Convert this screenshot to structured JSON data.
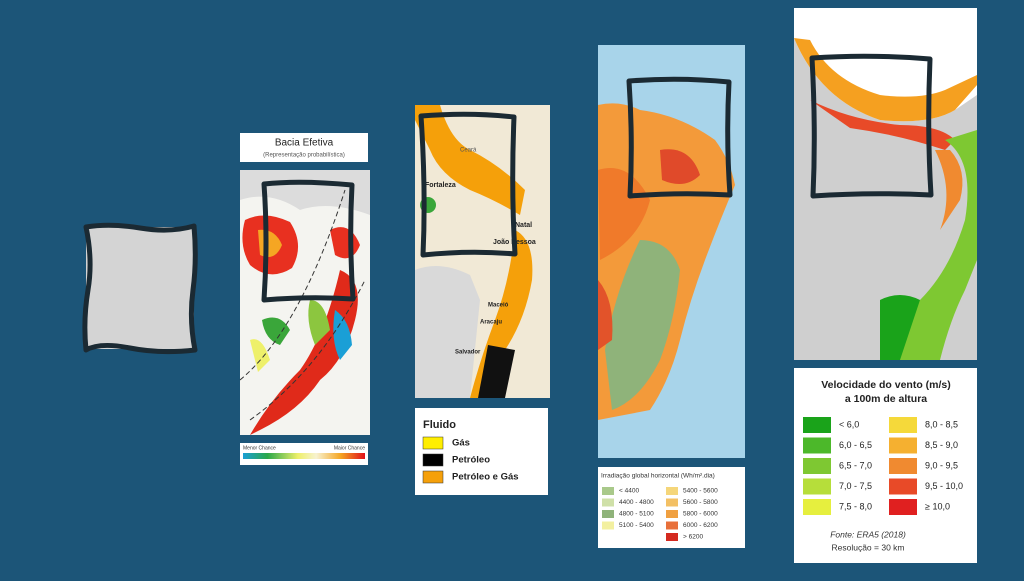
{
  "sediment": {
    "title": "Bacia Efetiva",
    "subtitle": "(Representação probabilística)",
    "scale_low": "Menor Chance",
    "scale_high": "Maior Chance"
  },
  "fluid": {
    "map_labels": [
      "Ceará",
      "Fortaleza",
      "Natal",
      "João Pessoa",
      "Maceió",
      "Aracaju",
      "Salvador"
    ],
    "legend_title": "Fluido",
    "legend": [
      {
        "label": "Gás",
        "color": "#ffee00"
      },
      {
        "label": "Petróleo",
        "color": "#000000"
      },
      {
        "label": "Petróleo e Gás",
        "color": "#f5a00a"
      }
    ]
  },
  "solar": {
    "legend_title": "Irradiação global horizontal (Wh/m².dia)",
    "legend": [
      {
        "label": "<  4400",
        "color": "#a9c98a"
      },
      {
        "label": "4400 - 4800",
        "color": "#cfe0a8"
      },
      {
        "label": "4800 - 5100",
        "color": "#8fb37a"
      },
      {
        "label": "5100 - 5400",
        "color": "#f3f0a0"
      },
      {
        "label": "5400 - 5600",
        "color": "#f5d67a"
      },
      {
        "label": "5600 - 5800",
        "color": "#f3c064"
      },
      {
        "label": "5800 - 6000",
        "color": "#f0a040"
      },
      {
        "label": "6000 - 6200",
        "color": "#e8703a"
      },
      {
        "label": "> 6200",
        "color": "#d42a20"
      }
    ]
  },
  "wind": {
    "legend_title": "Velocidade do vento (m/s)",
    "legend_subtitle": "a 100m de altura",
    "legend": [
      {
        "label": "< 6,0",
        "color": "#1aa31a"
      },
      {
        "label": "6,0 - 6,5",
        "color": "#4cb82a"
      },
      {
        "label": "6,5 - 7,0",
        "color": "#7ec832"
      },
      {
        "label": "7,0 - 7,5",
        "color": "#b6de3a"
      },
      {
        "label": "7,5 - 8,0",
        "color": "#e6ef3e"
      },
      {
        "label": "8,0 - 8,5",
        "color": "#f5d93a"
      },
      {
        "label": "8,5 - 9,0",
        "color": "#f5b030"
      },
      {
        "label": "9,0 - 9,5",
        "color": "#f08a30"
      },
      {
        "label": "9,5 - 10,0",
        "color": "#e84a28"
      },
      {
        "label": "≥ 10,0",
        "color": "#e02020"
      }
    ],
    "source": "Fonte: ERA5 (2018)",
    "resolution": "Resolução = 30 km"
  }
}
